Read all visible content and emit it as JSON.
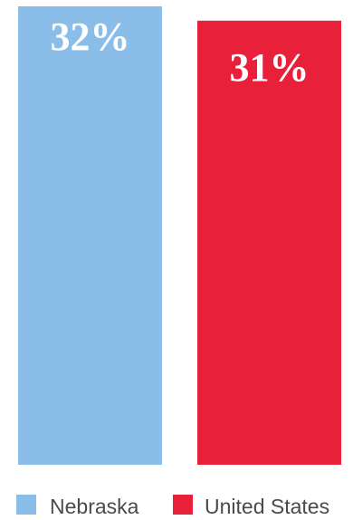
{
  "chart_data": {
    "type": "bar",
    "categories": [
      "Nebraska",
      "United States"
    ],
    "values": [
      32,
      31
    ],
    "value_labels": [
      "32%",
      "31%"
    ],
    "colors": [
      "#8bbde9",
      "#e8203a"
    ],
    "title": "",
    "xlabel": "",
    "ylabel": "",
    "legend": [
      {
        "name": "Nebraska",
        "color": "#8bbde9"
      },
      {
        "name": "United States",
        "color": "#e8203a"
      }
    ],
    "legend_position": "bottom",
    "grid": false
  }
}
